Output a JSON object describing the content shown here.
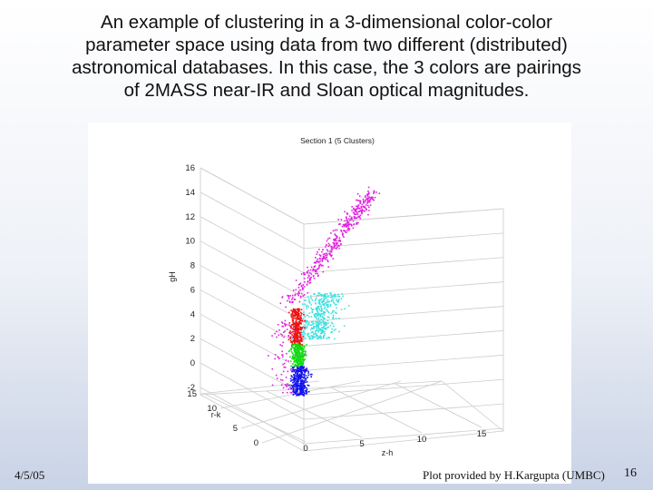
{
  "slide": {
    "title_lines": [
      "An example of clustering in a 3-dimensional color-color",
      "parameter space using data from two different (distributed)",
      "astronomical databases.  In this case, the 3 colors are pairings",
      "of 2MASS near-IR and Sloan optical magnitudes."
    ],
    "date": "4/5/05",
    "credit": "Plot provided by H.Kargupta (UMBC)",
    "page_number": "16"
  },
  "chart_data": {
    "type": "scatter",
    "title": "Section 1 (5 Clusters)",
    "axes": {
      "z": {
        "label": "gH",
        "ticks": [
          "16",
          "14",
          "12",
          "10",
          "8",
          "6",
          "4",
          "2",
          "0",
          "-2"
        ],
        "range": [
          -2,
          16
        ]
      },
      "y": {
        "label": "r-k",
        "ticks": [
          "15",
          "10",
          "5",
          "0"
        ],
        "range": [
          0,
          15
        ]
      },
      "x": {
        "label": "z-h",
        "ticks": [
          "0",
          "5",
          "10",
          "15"
        ],
        "range": [
          0,
          15
        ]
      }
    },
    "grid": true,
    "clusters": [
      {
        "color": "#e020e0",
        "z_range": [
          -2.5,
          14.5
        ],
        "note": "upper sequence and scattered outliers"
      },
      {
        "color": "#40e0e0",
        "z_range": [
          2,
          6
        ]
      },
      {
        "color": "#ee1111",
        "z_range": [
          1.3,
          4.6
        ]
      },
      {
        "color": "#11dd11",
        "z_range": [
          -0.2,
          1.6
        ]
      },
      {
        "color": "#1111ee",
        "z_range": [
          -2.6,
          -0.2
        ]
      }
    ]
  }
}
